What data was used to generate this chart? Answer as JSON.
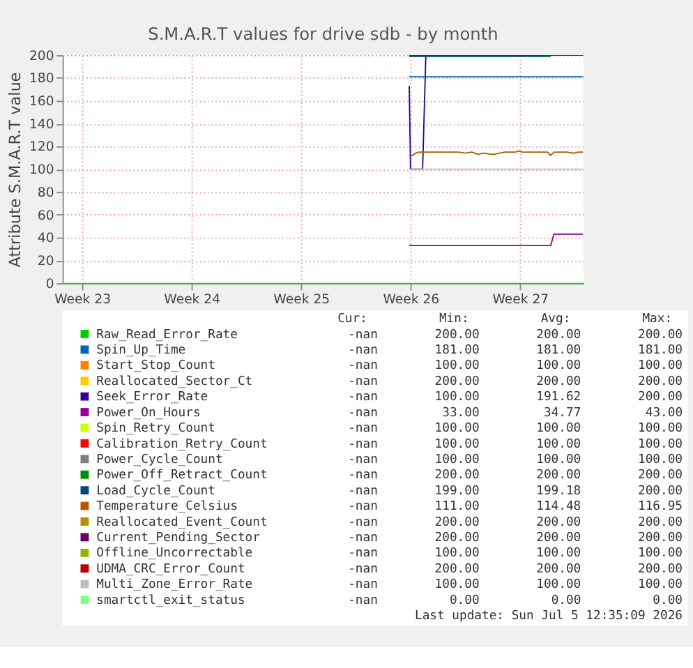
{
  "chart_data": {
    "type": "line",
    "title": "S.M.A.R.T values for drive sdb - by month",
    "ylabel": "Attribute S.M.A.R.T value",
    "xlim": [
      "2026-06-02T06:00",
      "2026-07-05T13:30"
    ],
    "xticks": [
      {
        "value": "2026-06-03T12:00",
        "label": "Week 23"
      },
      {
        "value": "2026-06-10T12:00",
        "label": "Week 24"
      },
      {
        "value": "2026-06-17T12:00",
        "label": "Week 25"
      },
      {
        "value": "2026-06-24T12:00",
        "label": "Week 26"
      },
      {
        "value": "2026-07-01T12:00",
        "label": "Week 27"
      }
    ],
    "ylim": [
      0,
      200
    ],
    "yticks": [
      0,
      20,
      40,
      60,
      80,
      100,
      120,
      140,
      160,
      180,
      200
    ],
    "grid": true,
    "legend": "bottom",
    "series": [
      {
        "name": "Raw_Read_Error_Rate",
        "color": "#00cc00"
      },
      {
        "name": "Spin_Up_Time",
        "color": "#0066b3",
        "x": [
          "2026-06-24T10:00",
          "2026-07-05T12:30"
        ],
        "values": [
          181,
          181
        ]
      },
      {
        "name": "Start_Stop_Count",
        "color": "#ff8000"
      },
      {
        "name": "Reallocated_Sector_Ct",
        "color": "#ffcc00"
      },
      {
        "name": "Seek_Error_Rate",
        "color": "#330099",
        "x": [
          "2026-06-24T10:00",
          "2026-06-24T12:00",
          "2026-06-25T06:30",
          "2026-06-25T11:30"
        ],
        "values": [
          173,
          100,
          100,
          200
        ]
      },
      {
        "name": "Power_On_Hours",
        "color": "#990099",
        "x": [
          "2026-06-24T10:00",
          "2026-07-03T11:00",
          "2026-07-03T16:00",
          "2026-07-05T12:30"
        ],
        "values": [
          33,
          33,
          43,
          43
        ]
      },
      {
        "name": "Spin_Retry_Count",
        "color": "#ccff00"
      },
      {
        "name": "Calibration_Retry_Count",
        "color": "#ff0000"
      },
      {
        "name": "Power_Cycle_Count",
        "color": "#808080"
      },
      {
        "name": "Power_Off_Retract_Count",
        "color": "#008f00"
      },
      {
        "name": "Load_Cycle_Count",
        "color": "#00487d",
        "x": [
          "2026-06-24T10:00",
          "2026-07-03T11:00"
        ],
        "values": [
          199,
          199
        ]
      },
      {
        "name": "Temperature_Celsius",
        "color": "#b35a00",
        "x": [
          "2026-06-24T10:00",
          "2026-06-24T15:00",
          "2026-06-24T19:00",
          "2026-06-25T01:00",
          "2026-06-25T21:30",
          "2026-06-26T18:00",
          "2026-06-27T14:00",
          "2026-06-28T00:00",
          "2026-06-28T10:00",
          "2026-06-28T20:00",
          "2026-06-29T03:00",
          "2026-06-29T19:30",
          "2026-06-30T12:30",
          "2026-07-01T05:30",
          "2026-07-01T08:30",
          "2026-07-01T15:30",
          "2026-07-02T15:00",
          "2026-07-03T06:00",
          "2026-07-03T11:00",
          "2026-07-03T16:00",
          "2026-07-04T12:00",
          "2026-07-04T22:30",
          "2026-07-05T05:00",
          "2026-07-05T12:30"
        ],
        "values": [
          112,
          112,
          114,
          115,
          115,
          115,
          115,
          114,
          115,
          113,
          114,
          113,
          115,
          115,
          116,
          115,
          115,
          115,
          112,
          115,
          115,
          114,
          115,
          115
        ]
      },
      {
        "name": "Reallocated_Event_Count",
        "color": "#b38f00"
      },
      {
        "name": "Current_Pending_Sector",
        "color": "#6b006b"
      },
      {
        "name": "Offline_Uncorrectable",
        "color": "#8fb300"
      },
      {
        "name": "UDMA_CRC_Error_Count",
        "color": "#b30000",
        "x": [
          "2026-06-24T10:00",
          "2026-07-05T12:30"
        ],
        "values": [
          200,
          200
        ]
      },
      {
        "name": "Multi_Zone_Error_Rate",
        "color": "#bebebe",
        "x": [
          "2026-06-24T10:00",
          "2026-07-05T12:30"
        ],
        "values": [
          100,
          100
        ]
      },
      {
        "name": "smartctl_exit_status",
        "color": "#80ff80",
        "x": [
          "2026-06-02T06:00",
          "2026-07-05T12:30"
        ],
        "values": [
          0,
          0
        ]
      }
    ],
    "annotations": [
      "Cur: Min: Avg: Max:",
      "-nan 200.00 200.00 200.00",
      "-nan 181.00 181.00 181.00",
      "-nan 100.00 100.00 100.00",
      "-nan 200.00 200.00 200.00",
      "-nan 100.00 191.62 200.00",
      "-nan 33.00 34.77 43.00",
      "-nan 100.00 100.00 100.00",
      "-nan 100.00 100.00 100.00",
      "-nan 100.00 100.00 100.00",
      "-nan 200.00 200.00 200.00",
      "-nan 199.00 199.18 200.00",
      "-nan 111.00 114.48 116.95",
      "-nan 200.00 200.00 200.00",
      "-nan 200.00 200.00 200.00",
      "-nan 100.00 100.00 100.00",
      "-nan 200.00 200.00 200.00",
      "-nan 100.00 100.00 100.00",
      "-nan 0.00 0.00 0.00",
      "Last update: Sun Jul  5 12:35:09 2026"
    ]
  }
}
